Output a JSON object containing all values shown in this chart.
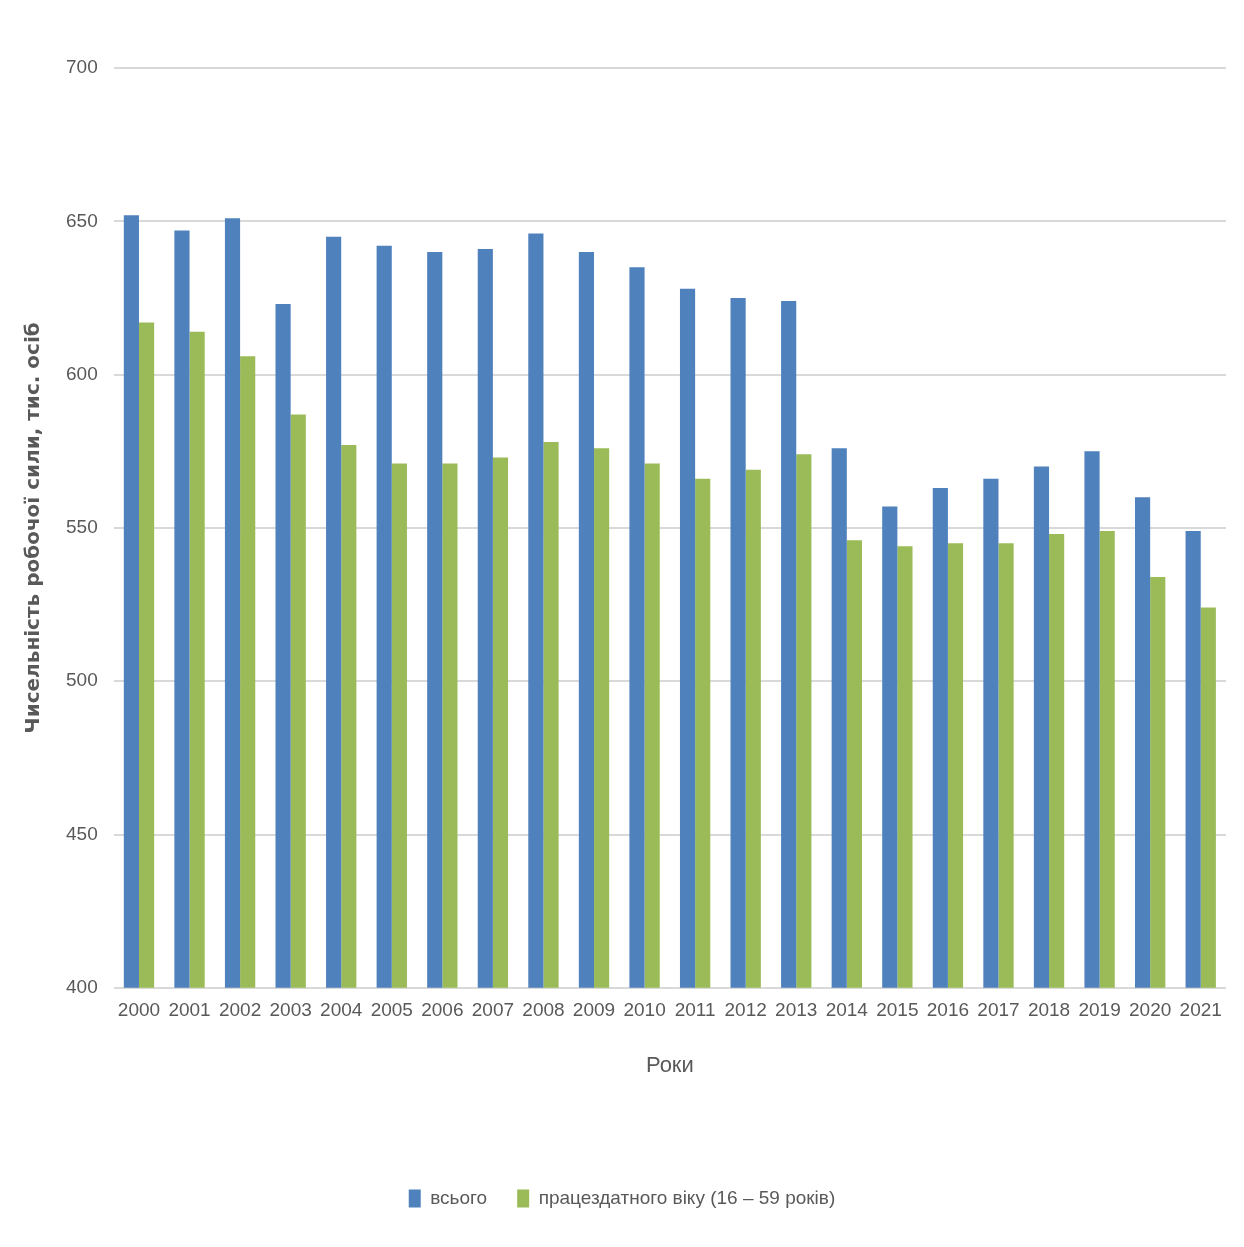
{
  "chart_data": {
    "type": "bar",
    "xlabel": "Роки",
    "ylabel": "Чисельність робочої сили, тис. осіб",
    "categories": [
      "2000",
      "2001",
      "2002",
      "2003",
      "2004",
      "2005",
      "2006",
      "2007",
      "2008",
      "2009",
      "2010",
      "2011",
      "2012",
      "2013",
      "2014",
      "2015",
      "2016",
      "2017",
      "2018",
      "2019",
      "2020",
      "2021"
    ],
    "series": [
      {
        "name": "всього",
        "color": "#4f81bd",
        "values": [
          652,
          647,
          651,
          623,
          645,
          642,
          640,
          641,
          646,
          640,
          635,
          628,
          625,
          624,
          576,
          557,
          563,
          566,
          570,
          575,
          560,
          549
        ]
      },
      {
        "name": "працездатного віку (16 – 59 років)",
        "color": "#9bbb59",
        "values": [
          617,
          614,
          606,
          587,
          577,
          571,
          571,
          573,
          578,
          576,
          571,
          566,
          569,
          574,
          546,
          544,
          545,
          545,
          548,
          549,
          534,
          524
        ]
      }
    ],
    "ylim": [
      400,
      700
    ],
    "yticks": [
      400,
      450,
      500,
      550,
      600,
      650,
      700
    ],
    "grid": "y",
    "legend": "bottom"
  }
}
